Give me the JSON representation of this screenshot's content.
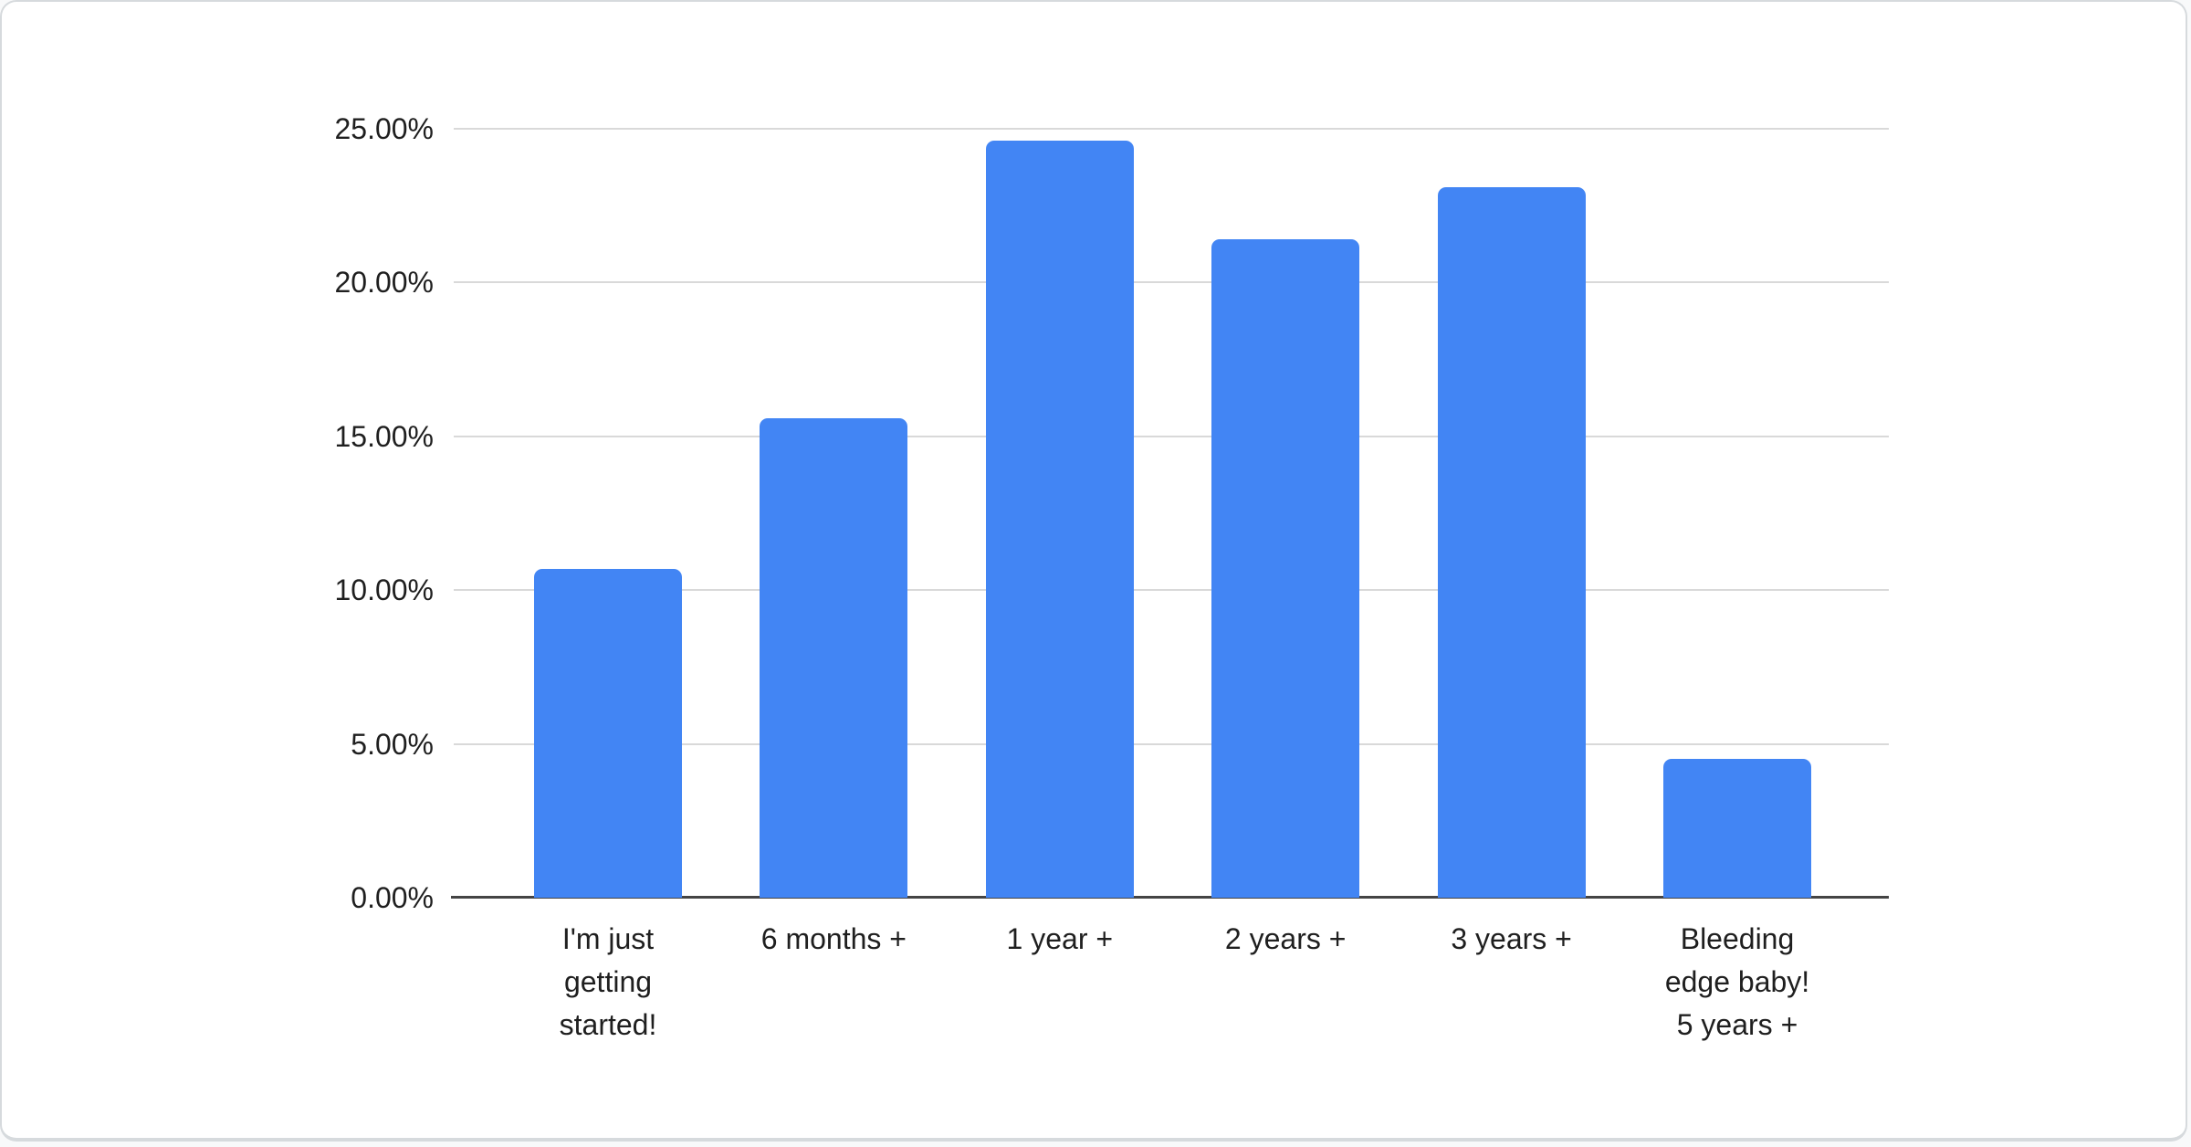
{
  "chart_data": {
    "type": "bar",
    "title": "",
    "categories": [
      "I'm just getting started!",
      "6 months +",
      "1 year +",
      "2 years +",
      "3 years +",
      "Bleeding edge baby! 5 years +"
    ],
    "category_lines": [
      [
        "I'm just",
        "getting",
        "started!"
      ],
      [
        "6 months +"
      ],
      [
        "1 year +"
      ],
      [
        "2 years +"
      ],
      [
        "3 years +"
      ],
      [
        "Bleeding",
        "edge baby!",
        "5 years +"
      ]
    ],
    "values": [
      10.7,
      15.6,
      24.6,
      21.4,
      23.1,
      4.5
    ],
    "value_unit": "%",
    "ylabel": "",
    "xlabel": "",
    "ylim": [
      0,
      25
    ],
    "yticks": [
      {
        "value": 0,
        "label": "0.00%"
      },
      {
        "value": 5,
        "label": "5.00%"
      },
      {
        "value": 10,
        "label": "10.00%"
      },
      {
        "value": 15,
        "label": "15.00%"
      },
      {
        "value": 20,
        "label": "20.00%"
      },
      {
        "value": 25,
        "label": "25.00%"
      }
    ],
    "grid": true,
    "legend": "none",
    "colors": {
      "bar": "#4285f4",
      "gridline": "#d9d9d9",
      "axis_line": "#444444",
      "text": "#1f1f1f",
      "card_background": "#ffffff",
      "card_border": "#d6dadd"
    }
  }
}
